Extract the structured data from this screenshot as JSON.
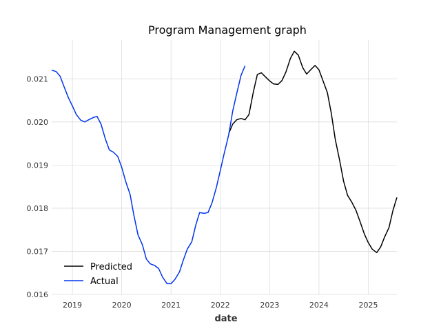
{
  "chart_data": {
    "type": "line",
    "title": "Program Management graph",
    "xlabel": "date",
    "ylabel": "",
    "xlim": [
      2018.58,
      2025.58
    ],
    "ylim": [
      0.016,
      0.0219
    ],
    "x_ticks": [
      2019,
      2020,
      2021,
      2022,
      2023,
      2024,
      2025
    ],
    "x_tick_labels": [
      "2019",
      "2020",
      "2021",
      "2022",
      "2023",
      "2024",
      "2025"
    ],
    "y_ticks": [
      0.016,
      0.017,
      0.018,
      0.019,
      0.02,
      0.021
    ],
    "y_tick_labels": [
      "0.016",
      "0.017",
      "0.018",
      "0.019",
      "0.020",
      "0.021"
    ],
    "grid": true,
    "legend_position": "lower-left",
    "series": [
      {
        "name": "Predicted",
        "color": "#000000",
        "x": [
          2022.17,
          2022.25,
          2022.33,
          2022.42,
          2022.5,
          2022.58,
          2022.67,
          2022.75,
          2022.83,
          2022.92,
          2023.0,
          2023.08,
          2023.17,
          2023.25,
          2023.33,
          2023.42,
          2023.5,
          2023.58,
          2023.67,
          2023.75,
          2023.83,
          2023.92,
          2024.0,
          2024.08,
          2024.17,
          2024.25,
          2024.33,
          2024.42,
          2024.5,
          2024.58,
          2024.67,
          2024.75,
          2024.83,
          2024.92,
          2025.0,
          2025.08,
          2025.17,
          2025.25,
          2025.33,
          2025.42,
          2025.5,
          2025.58
        ],
        "y": [
          0.01973,
          0.01995,
          0.02005,
          0.02008,
          0.02005,
          0.02017,
          0.0207,
          0.0211,
          0.02114,
          0.02104,
          0.02095,
          0.02088,
          0.02087,
          0.02096,
          0.02116,
          0.02147,
          0.02164,
          0.02155,
          0.02126,
          0.02111,
          0.02121,
          0.02131,
          0.02121,
          0.02096,
          0.02068,
          0.0202,
          0.0196,
          0.0191,
          0.01862,
          0.0183,
          0.01813,
          0.01795,
          0.0177,
          0.0174,
          0.0172,
          0.01705,
          0.01697,
          0.0171,
          0.01733,
          0.01755,
          0.01795,
          0.01825
        ]
      },
      {
        "name": "Actual",
        "color": "#0033ee",
        "x": [
          2018.58,
          2018.67,
          2018.75,
          2018.83,
          2018.92,
          2019.0,
          2019.08,
          2019.17,
          2019.25,
          2019.33,
          2019.42,
          2019.5,
          2019.58,
          2019.67,
          2019.75,
          2019.83,
          2019.92,
          2020.0,
          2020.08,
          2020.17,
          2020.25,
          2020.33,
          2020.42,
          2020.5,
          2020.58,
          2020.67,
          2020.75,
          2020.83,
          2020.92,
          2021.0,
          2021.08,
          2021.17,
          2021.25,
          2021.33,
          2021.42,
          2021.5,
          2021.58,
          2021.67,
          2021.75,
          2021.83,
          2021.92,
          2022.0,
          2022.08,
          2022.17,
          2022.25,
          2022.33,
          2022.42,
          2022.5
        ],
        "y": [
          0.0212,
          0.02117,
          0.02106,
          0.02082,
          0.02056,
          0.02037,
          0.02017,
          0.02004,
          0.02,
          0.02005,
          0.0201,
          0.02013,
          0.01995,
          0.0196,
          0.01935,
          0.0193,
          0.0192,
          0.01895,
          0.01862,
          0.01832,
          0.01782,
          0.01738,
          0.01715,
          0.01682,
          0.01671,
          0.01667,
          0.0166,
          0.0164,
          0.01625,
          0.01625,
          0.01635,
          0.01652,
          0.0168,
          0.01705,
          0.01722,
          0.0176,
          0.0179,
          0.01788,
          0.0179,
          0.01812,
          0.01848,
          0.01888,
          0.01928,
          0.0197,
          0.02025,
          0.02065,
          0.02108,
          0.0213
        ]
      }
    ]
  }
}
